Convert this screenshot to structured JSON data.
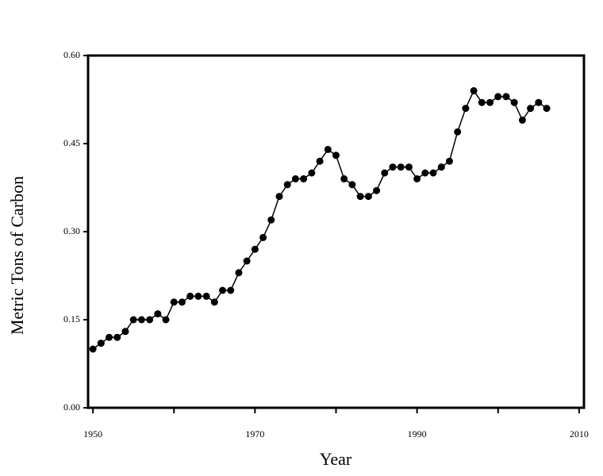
{
  "chart_data": {
    "type": "line",
    "x_label": "Year",
    "y_label": "Metric Tons of Carbon",
    "x": [
      1950,
      1951,
      1952,
      1953,
      1954,
      1955,
      1956,
      1957,
      1958,
      1959,
      1960,
      1961,
      1962,
      1963,
      1964,
      1965,
      1966,
      1967,
      1968,
      1969,
      1970,
      1971,
      1972,
      1973,
      1974,
      1975,
      1976,
      1977,
      1978,
      1979,
      1980,
      1981,
      1982,
      1983,
      1984,
      1985,
      1986,
      1987,
      1988,
      1989,
      1990,
      1991,
      1992,
      1993,
      1994,
      1995,
      1996,
      1997,
      1998,
      1999,
      2000,
      2001,
      2002,
      2003,
      2004,
      2005,
      2006
    ],
    "values": [
      0.1,
      0.11,
      0.12,
      0.12,
      0.13,
      0.15,
      0.15,
      0.15,
      0.16,
      0.15,
      0.18,
      0.18,
      0.19,
      0.19,
      0.19,
      0.18,
      0.2,
      0.2,
      0.23,
      0.25,
      0.27,
      0.29,
      0.32,
      0.36,
      0.38,
      0.39,
      0.39,
      0.4,
      0.42,
      0.44,
      0.43,
      0.39,
      0.38,
      0.36,
      0.36,
      0.37,
      0.4,
      0.41,
      0.41,
      0.41,
      0.39,
      0.4,
      0.4,
      0.41,
      0.42,
      0.47,
      0.51,
      0.54,
      0.52,
      0.52,
      0.53,
      0.53,
      0.52,
      0.49,
      0.51,
      0.52,
      0.51
    ],
    "color": "#000000",
    "xlim": [
      1949.4,
      2010.6
    ],
    "xticks": [
      1950,
      1970,
      1990,
      2010
    ],
    "xminor_ticks": [
      1960,
      1980,
      2000
    ],
    "ylim": [
      0,
      0.6
    ],
    "yticks": [
      {
        "value": 0,
        "label": "0.00"
      },
      {
        "value": 0.15,
        "label": "0.15"
      },
      {
        "value": 0.3,
        "label": "0.30"
      },
      {
        "value": 0.45,
        "label": "0.45"
      },
      {
        "value": 0.6,
        "label": "0.60"
      }
    ],
    "grid": false
  }
}
